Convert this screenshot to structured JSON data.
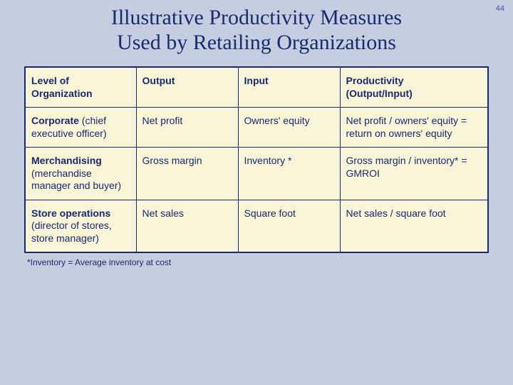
{
  "slide": {
    "page_number": "44",
    "title_line1": "Illustrative Productivity Measures",
    "title_line2": "Used by Retailing Organizations",
    "colors": {
      "background": "#c5cde0",
      "table_bg": "#f7f4d8",
      "text": "#1a2a6c",
      "border": "#1a2a6c"
    },
    "typography": {
      "title_font": "Times New Roman",
      "title_fontsize": 30,
      "body_font": "Arial",
      "body_fontsize": 14,
      "footnote_fontsize": 12
    }
  },
  "table": {
    "type": "table",
    "columns": [
      {
        "label_line1": "Level of",
        "label_line2": "Organization",
        "width_pct": 24
      },
      {
        "label_line1": "Output",
        "label_line2": "",
        "width_pct": 22
      },
      {
        "label_line1": "Input",
        "label_line2": "",
        "width_pct": 22
      },
      {
        "label_line1": "Productivity",
        "label_line2": "(Output/Input)",
        "width_pct": 32
      }
    ],
    "rows": [
      {
        "level_bold": "Corporate",
        "level_rest": " (chief executive officer)",
        "output": "Net profit",
        "input": "Owners' equity",
        "productivity": "Net profit / owners' equity = return on owners' equity"
      },
      {
        "level_bold": "Merchandising",
        "level_rest": " (merchandise manager and buyer)",
        "output": "Gross margin",
        "input": "Inventory *",
        "productivity": "Gross margin / inventory* = GMROI"
      },
      {
        "level_bold": "Store operations",
        "level_rest": " (director of stores, store manager)",
        "output": "Net sales",
        "input": "Square foot",
        "productivity": "Net sales / square foot"
      }
    ],
    "footnote": "*Inventory = Average inventory at cost"
  }
}
